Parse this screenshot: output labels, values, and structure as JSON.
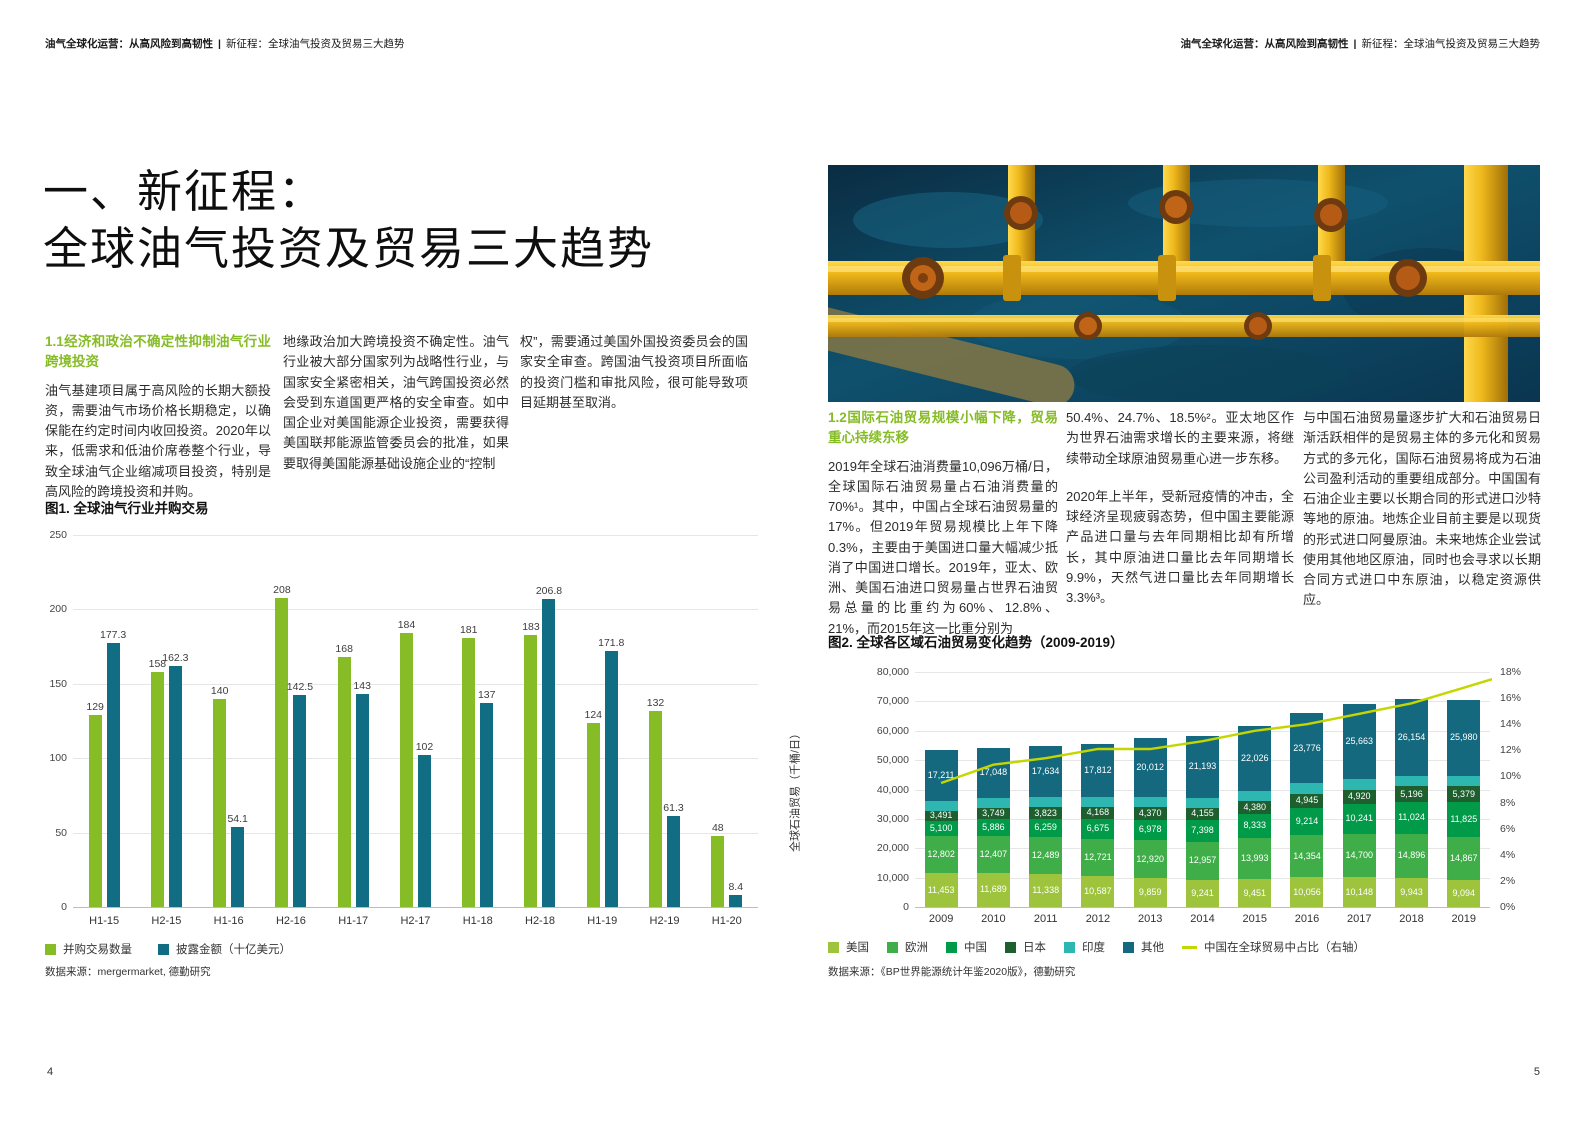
{
  "header": {
    "bold": "油气全球化运营：从高风险到高韧性",
    "separator": "|",
    "rest": "新征程：全球油气投资及贸易三大趋势"
  },
  "page_left": {
    "title_line1": "一、新征程：",
    "title_line2": "全球油气投资及贸易三大趋势",
    "section_1_1": {
      "heading": "1.1经济和政治不确定性抑制油气行业跨境投资",
      "col1": "油气基建项目属于高风险的长期大额投资，需要油气市场价格长期稳定，以确保能在约定时间内收回投资。2020年以来，低需求和低油价席卷整个行业，导致全球油气企业缩减项目投资，特别是高风险的跨境投资和并购。",
      "col2": "地缘政治加大跨境投资不确定性。油气行业被大部分国家列为战略性行业，与国家安全紧密相关，油气跨国投资必然会受到东道国更严格的安全审查。如中国企业对美国能源企业投资，需要获得美国联邦能源监管委员会的批准，如果要取得美国能源基础设施企业的“控制",
      "col3": "权”，需要通过美国外国投资委员会的国家安全审查。跨国油气投资项目所面临的投资门槛和审批风险，很可能导致项目延期甚至取消。"
    },
    "page_number": "4"
  },
  "page_right": {
    "section_1_2": {
      "heading": "1.2国际石油贸易规模小幅下降，贸易重心持续东移",
      "col1": "2019年全球石油消费量10,096万桶/日，全球国际石油贸易量占石油消费量的70%¹。其中，中国占全球石油贸易量的17%。但2019年贸易规模比上年下降0.3%，主要由于美国进口量大幅减少抵消了中国进口增长。2019年，亚太、欧洲、美国石油进口贸易量占世界石油贸易总量的比重约为60%、12.8%、21%，而2015年这一比重分别为",
      "col2_p1": "50.4%、24.7%、18.5%²。亚太地区作为世界石油需求增长的主要来源，将继续带动全球原油贸易重心进一步东移。",
      "col2_p2": "2020年上半年，受新冠疫情的冲击，全球经济呈现疲弱态势，但中国主要能源产品进口量与去年同期相比却有所增长，其中原油进口量比去年同期增长9.9%，天然气进口量比去年同期增长3.3%³。",
      "col3": "与中国石油贸易量逐步扩大和石油贸易日渐活跃相伴的是贸易主体的多元化和贸易方式的多元化，国际石油贸易将成为石油公司盈利活动的重要组成部分。中国国有石油企业主要以长期合同的形式进口沙特等地的原油。地炼企业目前主要是以现货的形式进口阿曼原油。未来地炼企业尝试使用其他地区原油，同时也会寻求以长期合同方式进口中东原油，以稳定资源供应。"
    },
    "page_number": "5"
  },
  "chart_data": [
    {
      "type": "bar",
      "title": "图1. 全球油气行业并购交易",
      "categories": [
        "H1-15",
        "H2-15",
        "H1-16",
        "H2-16",
        "H1-17",
        "H2-17",
        "H1-18",
        "H2-18",
        "H1-19",
        "H2-19",
        "H1-20"
      ],
      "series": [
        {
          "name": "并购交易数量",
          "color": "#86bc25",
          "values": [
            129,
            158,
            140,
            208,
            168,
            184,
            181,
            183,
            124,
            132,
            48
          ]
        },
        {
          "name": "披露金额（十亿美元）",
          "color": "#116d84",
          "values": [
            177.3,
            162.3,
            54.1,
            142.5,
            143,
            102,
            137,
            206.8,
            171.8,
            61.3,
            8.4
          ]
        }
      ],
      "ylim": [
        0,
        250
      ],
      "yticks": [
        0,
        50,
        100,
        150,
        200,
        250
      ],
      "grid": true,
      "legend_position": "bottom",
      "source": "数据来源：mergermarket, 德勤研究"
    },
    {
      "type": "bar",
      "subtype": "stacked-with-line",
      "title": "图2. 全球各区域石油贸易变化趋势（2009-2019）",
      "categories": [
        "2009",
        "2010",
        "2011",
        "2012",
        "2013",
        "2014",
        "2015",
        "2016",
        "2017",
        "2018",
        "2019"
      ],
      "ylabel": "全球石油贸易（千桶/日）",
      "ylim": [
        0,
        80000
      ],
      "yticks": [
        0,
        10000,
        20000,
        30000,
        40000,
        50000,
        60000,
        70000,
        80000
      ],
      "y2lim": [
        0,
        18
      ],
      "y2ticks": [
        "0%",
        "2%",
        "4%",
        "6%",
        "8%",
        "10%",
        "12%",
        "14%",
        "16%",
        "18%"
      ],
      "grid": true,
      "legend_position": "bottom",
      "series": [
        {
          "name": "美国",
          "color": "#9dc43c",
          "labels_shown": true,
          "values": [
            11453,
            11689,
            11338,
            10587,
            9859,
            9241,
            9451,
            10056,
            10148,
            9943,
            9094
          ]
        },
        {
          "name": "欧洲",
          "color": "#3fae49",
          "labels_shown": true,
          "values": [
            12802,
            12407,
            12489,
            12721,
            12920,
            12957,
            13993,
            14354,
            14700,
            14896,
            14867
          ]
        },
        {
          "name": "中国",
          "color": "#009a49",
          "labels_shown": true,
          "values": [
            5100,
            5886,
            6259,
            6675,
            6978,
            7398,
            8333,
            9214,
            10241,
            11024,
            11825
          ]
        },
        {
          "name": "日本",
          "color": "#1d5f2e",
          "labels_shown": true,
          "values": [
            3491,
            3749,
            3823,
            4168,
            4370,
            4155,
            4380,
            4945,
            4920,
            5196,
            5379
          ]
        },
        {
          "name": "印度",
          "color": "#2eb7b0",
          "labels_shown": false,
          "estimated": true,
          "values": [
            3400,
            3420,
            3450,
            3480,
            3500,
            3450,
            3500,
            3550,
            3500,
            3450,
            3400
          ]
        },
        {
          "name": "其他",
          "color": "#15697e",
          "labels_shown": true,
          "values": [
            17211,
            17048,
            17634,
            17812,
            20012,
            21193,
            22026,
            23776,
            25663,
            26154,
            25980
          ]
        }
      ],
      "line_series": {
        "name": "中国在全球贸易中占比（右轴）",
        "color": "#c4d600",
        "axis": "right",
        "estimated": true,
        "values": [
          9.5,
          10.9,
          11.4,
          12.1,
          12.1,
          12.7,
          13.5,
          14.0,
          14.8,
          15.6,
          16.8
        ]
      },
      "source": "数据来源：《BP世界能源统计年鉴2020版》，德勤研究"
    }
  ]
}
